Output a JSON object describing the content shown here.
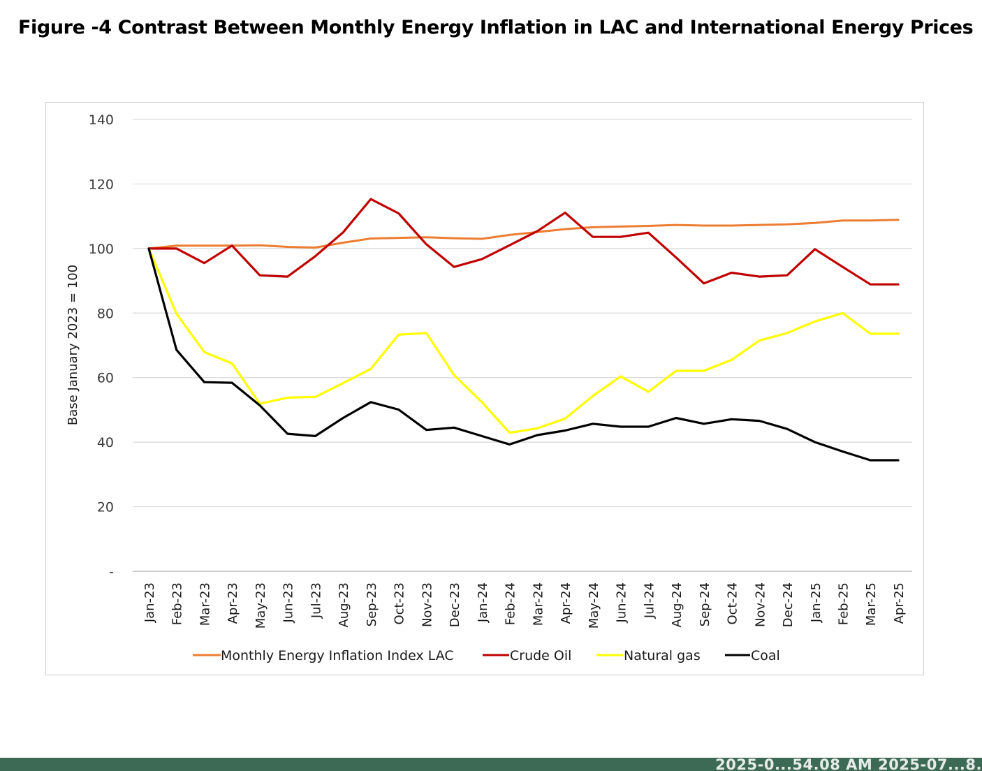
{
  "figure": {
    "title": "Figure -4 Contrast Between Monthly Energy Inflation in LAC and International Energy Prices"
  },
  "status_bar": {
    "text": "2025-0...54.08 AM   2025-07...8."
  },
  "chart_data": {
    "type": "line",
    "title": "",
    "xlabel": "",
    "ylabel": "Base January 2023 = 100",
    "ylim": [
      0,
      140
    ],
    "yticks": [
      0,
      20,
      40,
      60,
      80,
      100,
      120,
      140
    ],
    "ytick_labels": [
      "-",
      "20",
      "40",
      "60",
      "80",
      "100",
      "120",
      "140"
    ],
    "grid": true,
    "legend_position": "bottom",
    "categories": [
      "Jan-23",
      "Feb-23",
      "Mar-23",
      "Apr-23",
      "May-23",
      "Jun-23",
      "Jul-23",
      "Aug-23",
      "Sep-23",
      "Oct-23",
      "Nov-23",
      "Dec-23",
      "Jan-24",
      "Feb-24",
      "Mar-24",
      "Apr-24",
      "May-24",
      "Jun-24",
      "Jul-24",
      "Aug-24",
      "Sep-24",
      "Oct-24",
      "Nov-24",
      "Dec-24",
      "Jan-25",
      "Feb-25",
      "Mar-25",
      "Apr-25"
    ],
    "series": [
      {
        "name": "Monthly Energy Inflation Index LAC",
        "color": "#ed7d31",
        "values": [
          100,
          100.9,
          100.9,
          100.9,
          101.0,
          100.5,
          100.3,
          101.8,
          103.1,
          103.3,
          103.5,
          103.2,
          103.0,
          104.2,
          105.1,
          106.0,
          106.6,
          106.8,
          107.0,
          107.3,
          107.1,
          107.1,
          107.3,
          107.5,
          107.9,
          108.7,
          108.7,
          108.9
        ]
      },
      {
        "name": "Crude Oil",
        "color": "#c00000",
        "values": [
          100,
          100.0,
          95.5,
          100.9,
          91.7,
          91.3,
          97.6,
          105.0,
          115.3,
          110.9,
          101.3,
          94.3,
          96.7,
          101.0,
          105.4,
          111.1,
          103.6,
          103.6,
          104.9,
          97.2,
          89.2,
          92.5,
          91.3,
          91.7,
          99.8,
          94.3,
          88.9,
          88.9
        ]
      },
      {
        "name": "Natural gas",
        "color": "#ffff00",
        "values": [
          100,
          79.8,
          67.9,
          64.4,
          51.9,
          53.8,
          54.0,
          58.3,
          62.7,
          73.3,
          73.8,
          60.8,
          52.4,
          42.9,
          44.3,
          47.3,
          54.3,
          60.4,
          55.6,
          62.1,
          62.1,
          65.5,
          71.5,
          73.8,
          77.4,
          80.0,
          73.6,
          73.6
        ]
      },
      {
        "name": "Coal",
        "color": "#000000",
        "values": [
          100,
          68.6,
          58.6,
          58.4,
          51.4,
          42.6,
          41.9,
          47.5,
          52.4,
          50.1,
          43.8,
          44.5,
          41.9,
          39.3,
          42.2,
          43.6,
          45.7,
          44.8,
          44.8,
          47.5,
          45.7,
          47.1,
          46.6,
          44.1,
          40.0,
          37.1,
          34.4,
          34.4
        ]
      }
    ]
  }
}
